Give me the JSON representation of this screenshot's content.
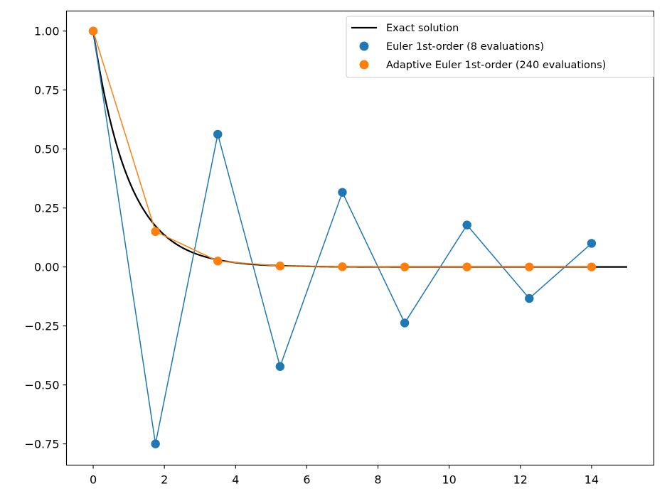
{
  "chart_data": {
    "type": "line",
    "title": "",
    "xlabel": "",
    "ylabel": "",
    "xlim": [
      -0.75,
      15.75
    ],
    "ylim": [
      -0.84,
      1.085
    ],
    "xticks": [
      0,
      2,
      4,
      6,
      8,
      10,
      12,
      14
    ],
    "xtick_labels": [
      "0",
      "2",
      "4",
      "6",
      "8",
      "10",
      "12",
      "14"
    ],
    "yticks": [
      -0.75,
      -0.5,
      -0.25,
      0.0,
      0.25,
      0.5,
      0.75,
      1.0
    ],
    "ytick_labels": [
      "−0.75",
      "−0.50",
      "−0.25",
      "0.00",
      "0.25",
      "0.50",
      "0.75",
      "1.00"
    ],
    "grid": false,
    "legend_position": "top-right",
    "series": [
      {
        "name": "Exact solution",
        "kind": "curve",
        "function": "exp(-t)",
        "x_range": [
          0,
          15
        ],
        "color": "#000000"
      },
      {
        "name": "Euler 1st-order (8 evaluations)",
        "kind": "line-markers",
        "color": "#1f77b4",
        "x": [
          0,
          1.75,
          3.5,
          5.25,
          7.0,
          8.75,
          10.5,
          12.25,
          14.0
        ],
        "y": [
          1.0,
          -0.75,
          0.5625,
          -0.4219,
          0.3164,
          -0.2373,
          0.178,
          -0.1335,
          0.1001
        ]
      },
      {
        "name": "Adaptive Euler 1st-order (240 evaluations)",
        "kind": "line-markers",
        "color": "#ff7f0e",
        "x": [
          0,
          1.75,
          3.5,
          5.25,
          7.0,
          8.75,
          10.5,
          12.25,
          14.0
        ],
        "y": [
          1.0,
          0.15,
          0.025,
          0.004,
          0.001,
          0.0,
          0.0,
          0.0,
          0.0
        ]
      }
    ]
  }
}
